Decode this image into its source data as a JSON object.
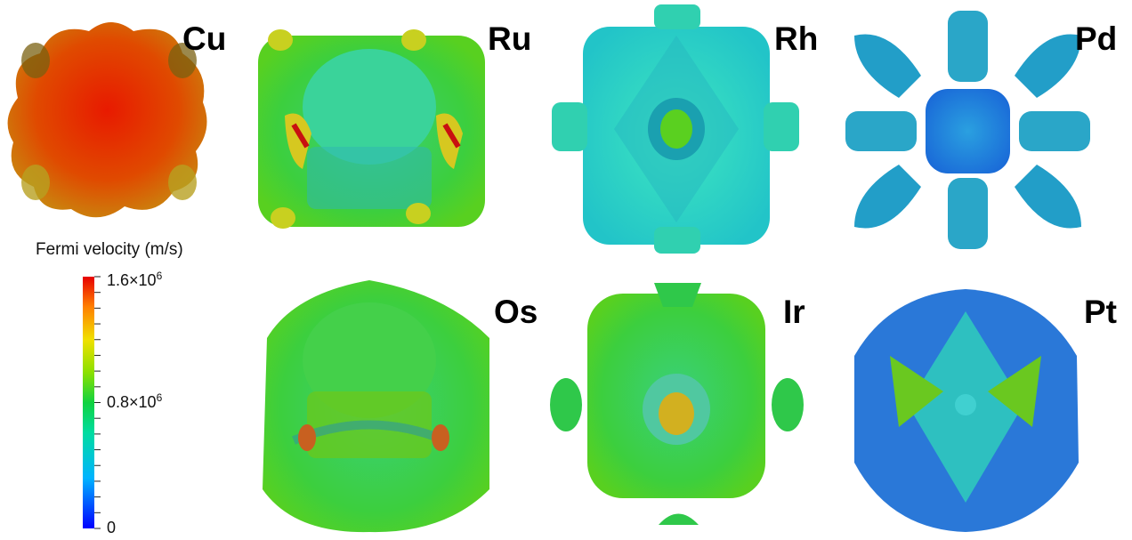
{
  "panels": [
    {
      "element": "Cu"
    },
    {
      "element": "Ru"
    },
    {
      "element": "Rh"
    },
    {
      "element": "Pd"
    },
    {
      "element": "Os"
    },
    {
      "element": "Ir"
    },
    {
      "element": "Pt"
    }
  ],
  "colorbar": {
    "title": "Fermi velocity (m/s)",
    "max_label_base": "1.6×10",
    "mid_label_base": "0.8×10",
    "exponent": "6",
    "min_label": "0",
    "max_value": 1600000,
    "mid_value": 800000,
    "min_value": 0,
    "colors": [
      "#0000ff",
      "#00c8ff",
      "#00d26e",
      "#46dc14",
      "#c8e600",
      "#ffc800",
      "#ff5a00",
      "#e60000"
    ]
  }
}
